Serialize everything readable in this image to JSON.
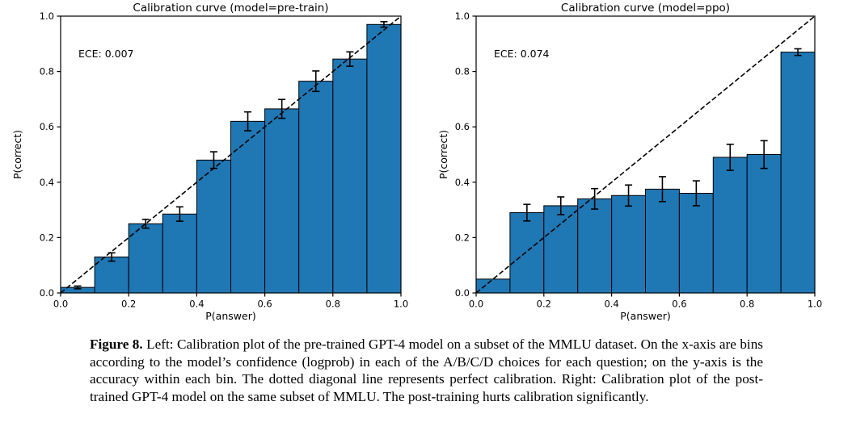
{
  "caption": {
    "label": "Figure 8.",
    "text": "Left: Calibration plot of the pre-trained GPT-4 model on a subset of the MMLU dataset. On the x-axis are bins according to the model’s confidence (logprob) in each of the A/B/C/D choices for each question; on the y-axis is the accuracy within each bin. The dotted diagonal line represents perfect calibration. Right: Calibration plot of the post-trained GPT-4 model on the same subset of MMLU. The post-training hurts calibration significantly."
  },
  "colors": {
    "bar_fill": "#1f77b4",
    "bar_edge": "#000000",
    "diagonal_line": "#000000",
    "axis": "#000000",
    "background": "#ffffff"
  },
  "chart_data": [
    {
      "type": "bar",
      "title": "Calibration curve (model=pre-train)",
      "annotation": "ECE: 0.007",
      "xlabel": "P(answer)",
      "ylabel": "P(correct)",
      "xlim": [
        0.0,
        1.0
      ],
      "ylim": [
        0.0,
        1.0
      ],
      "xticks": [
        "0.0",
        "0.2",
        "0.4",
        "0.6",
        "0.8",
        "1.0"
      ],
      "yticks": [
        "0.0",
        "0.2",
        "0.4",
        "0.6",
        "0.8",
        "1.0"
      ],
      "bin_edges": [
        0.0,
        0.1,
        0.2,
        0.3,
        0.4,
        0.5,
        0.6,
        0.7,
        0.8,
        0.9,
        1.0
      ],
      "values": [
        0.02,
        0.13,
        0.25,
        0.285,
        0.48,
        0.62,
        0.665,
        0.765,
        0.845,
        0.97
      ],
      "errors": [
        0.005,
        0.015,
        0.016,
        0.026,
        0.03,
        0.034,
        0.034,
        0.037,
        0.026,
        0.01
      ],
      "diagonal": true,
      "grid": false,
      "legend": null
    },
    {
      "type": "bar",
      "title": "Calibration curve (model=ppo)",
      "annotation": "ECE: 0.074",
      "xlabel": "P(answer)",
      "ylabel": "P(correct)",
      "xlim": [
        0.0,
        1.0
      ],
      "ylim": [
        0.0,
        1.0
      ],
      "xticks": [
        "0.0",
        "0.2",
        "0.4",
        "0.6",
        "0.8",
        "1.0"
      ],
      "yticks": [
        "0.0",
        "0.2",
        "0.4",
        "0.6",
        "0.8",
        "1.0"
      ],
      "bin_edges": [
        0.0,
        0.1,
        0.2,
        0.3,
        0.4,
        0.5,
        0.6,
        0.7,
        0.8,
        0.9,
        1.0
      ],
      "values": [
        0.05,
        0.29,
        0.315,
        0.34,
        0.352,
        0.375,
        0.36,
        0.49,
        0.5,
        0.87
      ],
      "errors": [
        0,
        0.03,
        0.032,
        0.037,
        0.038,
        0.045,
        0.045,
        0.047,
        0.05,
        0.012
      ],
      "diagonal": true,
      "grid": false,
      "legend": null
    }
  ]
}
